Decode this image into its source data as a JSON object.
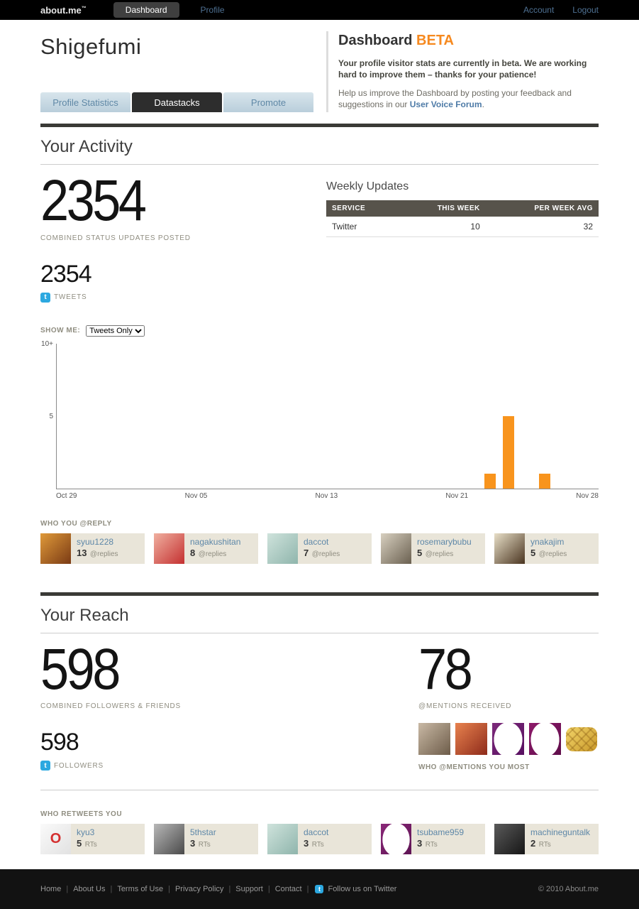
{
  "topnav": {
    "logo": {
      "part1": "about.",
      "part2": "me",
      "tm": "™"
    },
    "dashboard_tab": "Dashboard",
    "profile_tab": "Profile",
    "account_link": "Account",
    "logout_link": "Logout"
  },
  "header": {
    "username": "Shigefumi",
    "dashboard_title": "Dashboard",
    "beta_badge": "BETA",
    "beta_notice": "Your profile visitor stats are currently in beta. We are working hard to improve them – thanks for your patience!",
    "help_before": "Help us improve the Dashboard by posting your feedback and suggestions in our",
    "help_link": "User Voice Forum",
    "help_after": "."
  },
  "tabs": [
    {
      "label": "Profile Statistics"
    },
    {
      "label": "Datastacks"
    },
    {
      "label": "Promote"
    }
  ],
  "activity": {
    "title": "Your Activity",
    "combined_count": "2354",
    "combined_label": "COMBINED STATUS UPDATES POSTED",
    "tweets_count": "2354",
    "tweets_label": "TWEETS",
    "weekly": {
      "title": "Weekly Updates",
      "columns": [
        "SERVICE",
        "THIS WEEK",
        "PER WEEK AVG"
      ],
      "rows": [
        [
          "Twitter",
          "10",
          "32"
        ]
      ]
    },
    "show_me_label": "SHOW ME:",
    "show_me_value": "Tweets Only",
    "replies": {
      "title": "WHO YOU @REPLY",
      "users": [
        {
          "name": "syuu1228",
          "count": "13",
          "unit": "@replies",
          "avatar": {
            "c1": "#e09a3a",
            "c2": "#7a3a14"
          }
        },
        {
          "name": "nagakushitan",
          "count": "8",
          "unit": "@replies",
          "avatar": {
            "c1": "#f0b0a0",
            "c2": "#c43030"
          }
        },
        {
          "name": "daccot",
          "count": "7",
          "unit": "@replies",
          "avatar": {
            "c1": "#cfe3dc",
            "c2": "#8fb5ac"
          }
        },
        {
          "name": "rosemarybubu",
          "count": "5",
          "unit": "@replies",
          "avatar": {
            "c1": "#d8d0c0",
            "c2": "#6a6050"
          }
        },
        {
          "name": "ynakajim",
          "count": "5",
          "unit": "@replies",
          "avatar": {
            "c1": "#e8dfc8",
            "c2": "#4a3520"
          }
        }
      ]
    }
  },
  "chart_data": {
    "type": "bar",
    "x_ticks": [
      "Oct 29",
      "Nov 05",
      "Nov 13",
      "Nov 21",
      "Nov 28"
    ],
    "y_ticks": [
      "10+",
      "5"
    ],
    "ylim": [
      0,
      10
    ],
    "days_total": 30,
    "bar_color": "#f8941d",
    "bars": [
      {
        "date": "Nov 22",
        "day": 24,
        "value": 1
      },
      {
        "date": "Nov 23",
        "day": 25,
        "value": 5
      },
      {
        "date": "Nov 25",
        "day": 27,
        "value": 1
      }
    ]
  },
  "reach": {
    "title": "Your Reach",
    "combined_count": "598",
    "combined_label": "COMBINED FOLLOWERS & FRIENDS",
    "followers_count": "598",
    "followers_label": "FOLLOWERS",
    "mentions_count": "78",
    "mentions_label": "@MENTIONS RECEIVED",
    "mentions_most_label": "WHO @MENTIONS YOU MOST",
    "mentions_avatars": [
      {
        "c1": "#c9b9a5",
        "c2": "#6d5c49"
      },
      {
        "c1": "#e8824e",
        "c2": "#8e2b1b"
      },
      {
        "c1": "#7c2a7a",
        "c2": "#581061",
        "shape": "egg"
      },
      {
        "c1": "#8e1a6a",
        "c2": "#5f0e4b",
        "shape": "egg"
      },
      {
        "c1": "#f2d468",
        "c2": "#c9992b",
        "shape": "melon"
      }
    ],
    "retweets": {
      "title": "WHO RETWEETS YOU",
      "users": [
        {
          "name": "kyu3",
          "count": "5",
          "unit": "RTs",
          "avatar": {
            "c1": "#fafafa",
            "c2": "#e2e2e2",
            "glyph": "O",
            "glyph_color": "#d43030"
          }
        },
        {
          "name": "5thstar",
          "count": "3",
          "unit": "RTs",
          "avatar": {
            "c1": "#b8b8b8",
            "c2": "#4a4a4a"
          }
        },
        {
          "name": "daccot",
          "count": "3",
          "unit": "RTs",
          "avatar": {
            "c1": "#cfe3dc",
            "c2": "#8fb5ac"
          }
        },
        {
          "name": "tsubame959",
          "count": "3",
          "unit": "RTs",
          "avatar": {
            "c1": "#8a2878",
            "c2": "#5e1454",
            "shape": "egg"
          }
        },
        {
          "name": "machineguntalk",
          "count": "2",
          "unit": "RTs",
          "avatar": {
            "c1": "#5a5a5a",
            "c2": "#161616"
          }
        }
      ]
    }
  },
  "footer": {
    "links": [
      "Home",
      "About Us",
      "Terms of Use",
      "Privacy Policy",
      "Support",
      "Contact"
    ],
    "divider": "|",
    "twitter_label": "Follow us on Twitter",
    "copyright": "© 2010 About.me"
  },
  "icons": {
    "twitter_glyph": "t"
  },
  "colors": {
    "accent_orange": "#f6891f",
    "link_blue": "#4e7ba7",
    "bar_orange": "#f8941d",
    "card_bg": "#e9e5d9"
  }
}
